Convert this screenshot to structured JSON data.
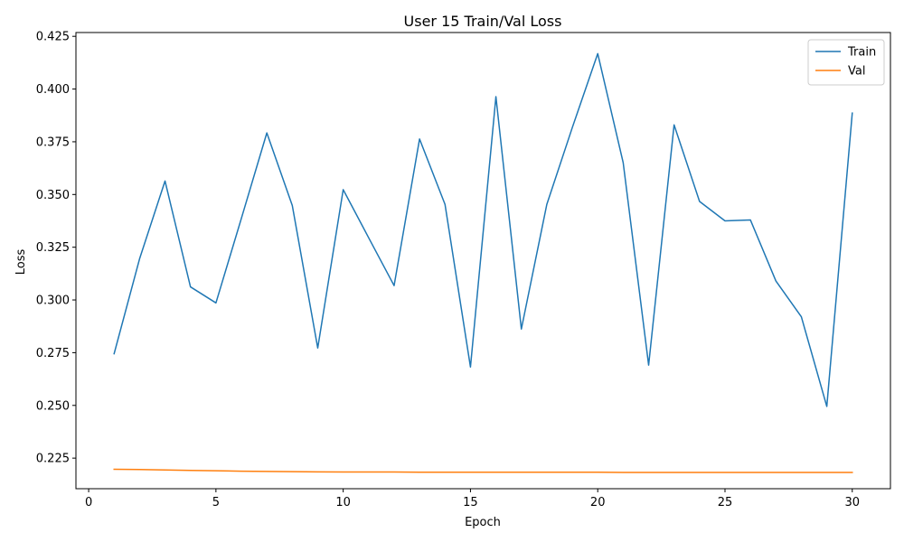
{
  "chart_data": {
    "type": "line",
    "title": "User 15 Train/Val Loss",
    "xlabel": "Epoch",
    "ylabel": "Loss",
    "xlim": [
      -0.5,
      31.5
    ],
    "ylim": [
      0.2105,
      0.4268
    ],
    "xticks": [
      0,
      5,
      10,
      15,
      20,
      25,
      30
    ],
    "xtick_labels": [
      "0",
      "5",
      "10",
      "15",
      "20",
      "25",
      "30"
    ],
    "yticks": [
      0.225,
      0.25,
      0.275,
      0.3,
      0.325,
      0.35,
      0.375,
      0.4,
      0.425
    ],
    "ytick_labels": [
      "0.225",
      "0.250",
      "0.275",
      "0.300",
      "0.325",
      "0.350",
      "0.375",
      "0.400",
      "0.425"
    ],
    "grid": false,
    "legend_position": "top-right",
    "x": [
      1,
      2,
      3,
      4,
      5,
      6,
      7,
      8,
      9,
      10,
      11,
      12,
      13,
      14,
      15,
      16,
      17,
      18,
      19,
      20,
      21,
      22,
      23,
      24,
      25,
      26,
      27,
      28,
      29,
      30
    ],
    "series": [
      {
        "name": "Train",
        "color": "#1f77b4",
        "values": [
          0.2745,
          0.3195,
          0.3564,
          0.3062,
          0.2986,
          0.3387,
          0.3792,
          0.3448,
          0.2772,
          0.3523,
          0.3295,
          0.3068,
          0.3763,
          0.3453,
          0.2682,
          0.3964,
          0.2862,
          0.3453,
          0.3817,
          0.4168,
          0.3651,
          0.2691,
          0.383,
          0.3467,
          0.3375,
          0.3379,
          0.309,
          0.292,
          0.2495,
          0.3886
        ]
      },
      {
        "name": "Val",
        "color": "#ff7f0e",
        "values": [
          0.2197,
          0.2196,
          0.2194,
          0.2192,
          0.219,
          0.2188,
          0.2187,
          0.2186,
          0.2185,
          0.2184,
          0.2184,
          0.2184,
          0.2183,
          0.2183,
          0.2183,
          0.2183,
          0.2183,
          0.2183,
          0.2183,
          0.2183,
          0.2182,
          0.2182,
          0.2182,
          0.2182,
          0.2182,
          0.2182,
          0.2182,
          0.2182,
          0.2182,
          0.2182
        ]
      }
    ]
  }
}
